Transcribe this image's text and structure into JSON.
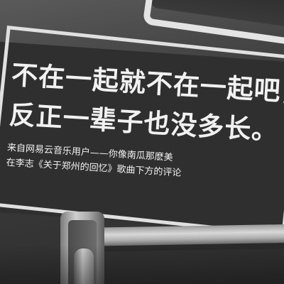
{
  "poster": {
    "headline_lines": [
      "不在一起就不在一起吧，",
      "反正一辈子也没多长。"
    ],
    "attribution_lines": [
      "来自网易云音乐用户——你像南瓜那麽美",
      "在李志《关于郑州的回忆》歌曲下方的评论"
    ]
  },
  "colors": {
    "poster_bg": "#2f2f2f",
    "text": "#f1f1f1",
    "frame": "#e0e0e0",
    "metal": "#cfcfcf"
  }
}
